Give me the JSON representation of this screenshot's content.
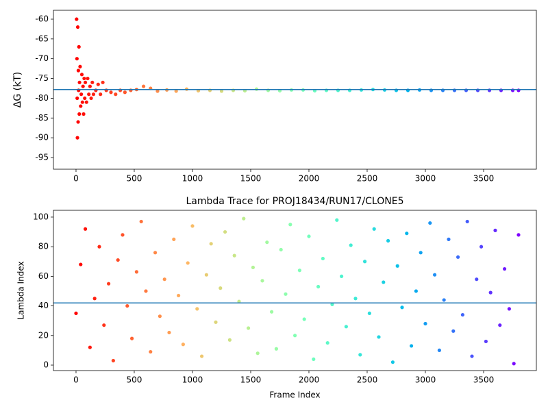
{
  "chart_data": [
    {
      "type": "scatter",
      "ylabel": "ΔG (kT)",
      "colormap": "rainbow_r",
      "color_range": [
        0,
        3800
      ],
      "hline": -77.8,
      "hline_color": "#1f77b4",
      "xlim": [
        -194,
        3953
      ],
      "ylim": [
        -97.95,
        -57.75
      ],
      "xticks": [
        0,
        500,
        1000,
        1500,
        2000,
        2500,
        3000,
        3500
      ],
      "yticks": [
        -95,
        -90,
        -85,
        -80,
        -75,
        -70,
        -65,
        -60
      ],
      "x": [
        5,
        8,
        10,
        12,
        15,
        18,
        20,
        22,
        25,
        28,
        30,
        35,
        40,
        45,
        50,
        55,
        60,
        65,
        70,
        75,
        80,
        90,
        100,
        110,
        120,
        130,
        140,
        150,
        170,
        190,
        210,
        230,
        260,
        300,
        340,
        380,
        420,
        470,
        520,
        580,
        640,
        700,
        780,
        860,
        950,
        1050,
        1150,
        1250,
        1350,
        1450,
        1550,
        1650,
        1750,
        1850,
        1950,
        2050,
        2150,
        2250,
        2350,
        2450,
        2550,
        2650,
        2750,
        2850,
        2950,
        3050,
        3150,
        3250,
        3350,
        3450,
        3550,
        3650,
        3750,
        3800
      ],
      "values": [
        -60,
        -70,
        -80,
        -90,
        -62,
        -86,
        -73,
        -78,
        -67,
        -84,
        -76,
        -72,
        -82,
        -79,
        -74,
        -81,
        -77,
        -84,
        -75,
        -80,
        -76,
        -81,
        -75,
        -79,
        -77,
        -80,
        -76,
        -79,
        -78,
        -76.5,
        -79,
        -76,
        -78,
        -78.5,
        -79,
        -78,
        -78.5,
        -78,
        -77.8,
        -77,
        -77.5,
        -78.2,
        -77.9,
        -78.2,
        -77.7,
        -78.1,
        -78,
        -78.2,
        -78,
        -78.1,
        -77.7,
        -78,
        -78.1,
        -77.9,
        -77.9,
        -78.1,
        -78,
        -78,
        -78,
        -77.9,
        -77.8,
        -77.9,
        -78,
        -78,
        -77.9,
        -78,
        -78,
        -78,
        -78,
        -78,
        -78,
        -78,
        -78,
        -78
      ]
    },
    {
      "type": "scatter",
      "title": "Lambda Trace for PROJ18434/RUN17/CLONE5",
      "xlabel": "Frame Index",
      "ylabel": "Lambda Index",
      "colormap": "rainbow_r",
      "color_range": [
        0,
        3800
      ],
      "hline": 42,
      "hline_color": "#1f77b4",
      "xlim": [
        -194,
        3953
      ],
      "ylim": [
        -3.7,
        104.6
      ],
      "xticks": [
        0,
        500,
        1000,
        1500,
        2000,
        2500,
        3000,
        3500
      ],
      "yticks": [
        0,
        20,
        40,
        60,
        80,
        100
      ],
      "x": [
        0,
        40,
        80,
        120,
        160,
        200,
        240,
        280,
        320,
        360,
        400,
        440,
        480,
        520,
        560,
        600,
        640,
        680,
        720,
        760,
        800,
        840,
        880,
        920,
        960,
        1000,
        1040,
        1080,
        1120,
        1160,
        1200,
        1240,
        1280,
        1320,
        1360,
        1400,
        1440,
        1480,
        1520,
        1560,
        1600,
        1640,
        1680,
        1720,
        1760,
        1800,
        1840,
        1880,
        1920,
        1960,
        2000,
        2040,
        2080,
        2120,
        2160,
        2200,
        2240,
        2280,
        2320,
        2360,
        2400,
        2440,
        2480,
        2520,
        2560,
        2600,
        2640,
        2680,
        2720,
        2760,
        2800,
        2840,
        2880,
        2920,
        2960,
        3000,
        3040,
        3080,
        3120,
        3160,
        3200,
        3240,
        3280,
        3320,
        3360,
        3400,
        3440,
        3480,
        3520,
        3560,
        3600,
        3640,
        3680,
        3720,
        3760,
        3800
      ],
      "values": [
        35,
        68,
        92,
        12,
        45,
        80,
        27,
        55,
        3,
        71,
        88,
        40,
        18,
        63,
        97,
        50,
        9,
        76,
        33,
        58,
        22,
        85,
        47,
        14,
        69,
        94,
        38,
        6,
        61,
        82,
        29,
        52,
        90,
        17,
        74,
        43,
        99,
        25,
        66,
        8,
        57,
        83,
        36,
        11,
        78,
        48,
        95,
        20,
        64,
        31,
        87,
        4,
        53,
        72,
        15,
        41,
        98,
        60,
        26,
        81,
        45,
        7,
        70,
        35,
        92,
        19,
        56,
        84,
        2,
        67,
        39,
        89,
        13,
        50,
        76,
        28,
        96,
        61,
        10,
        44,
        85,
        23,
        73,
        34,
        97,
        6,
        58,
        80,
        16,
        49,
        91,
        27,
        65,
        38,
        1,
        88
      ]
    }
  ]
}
